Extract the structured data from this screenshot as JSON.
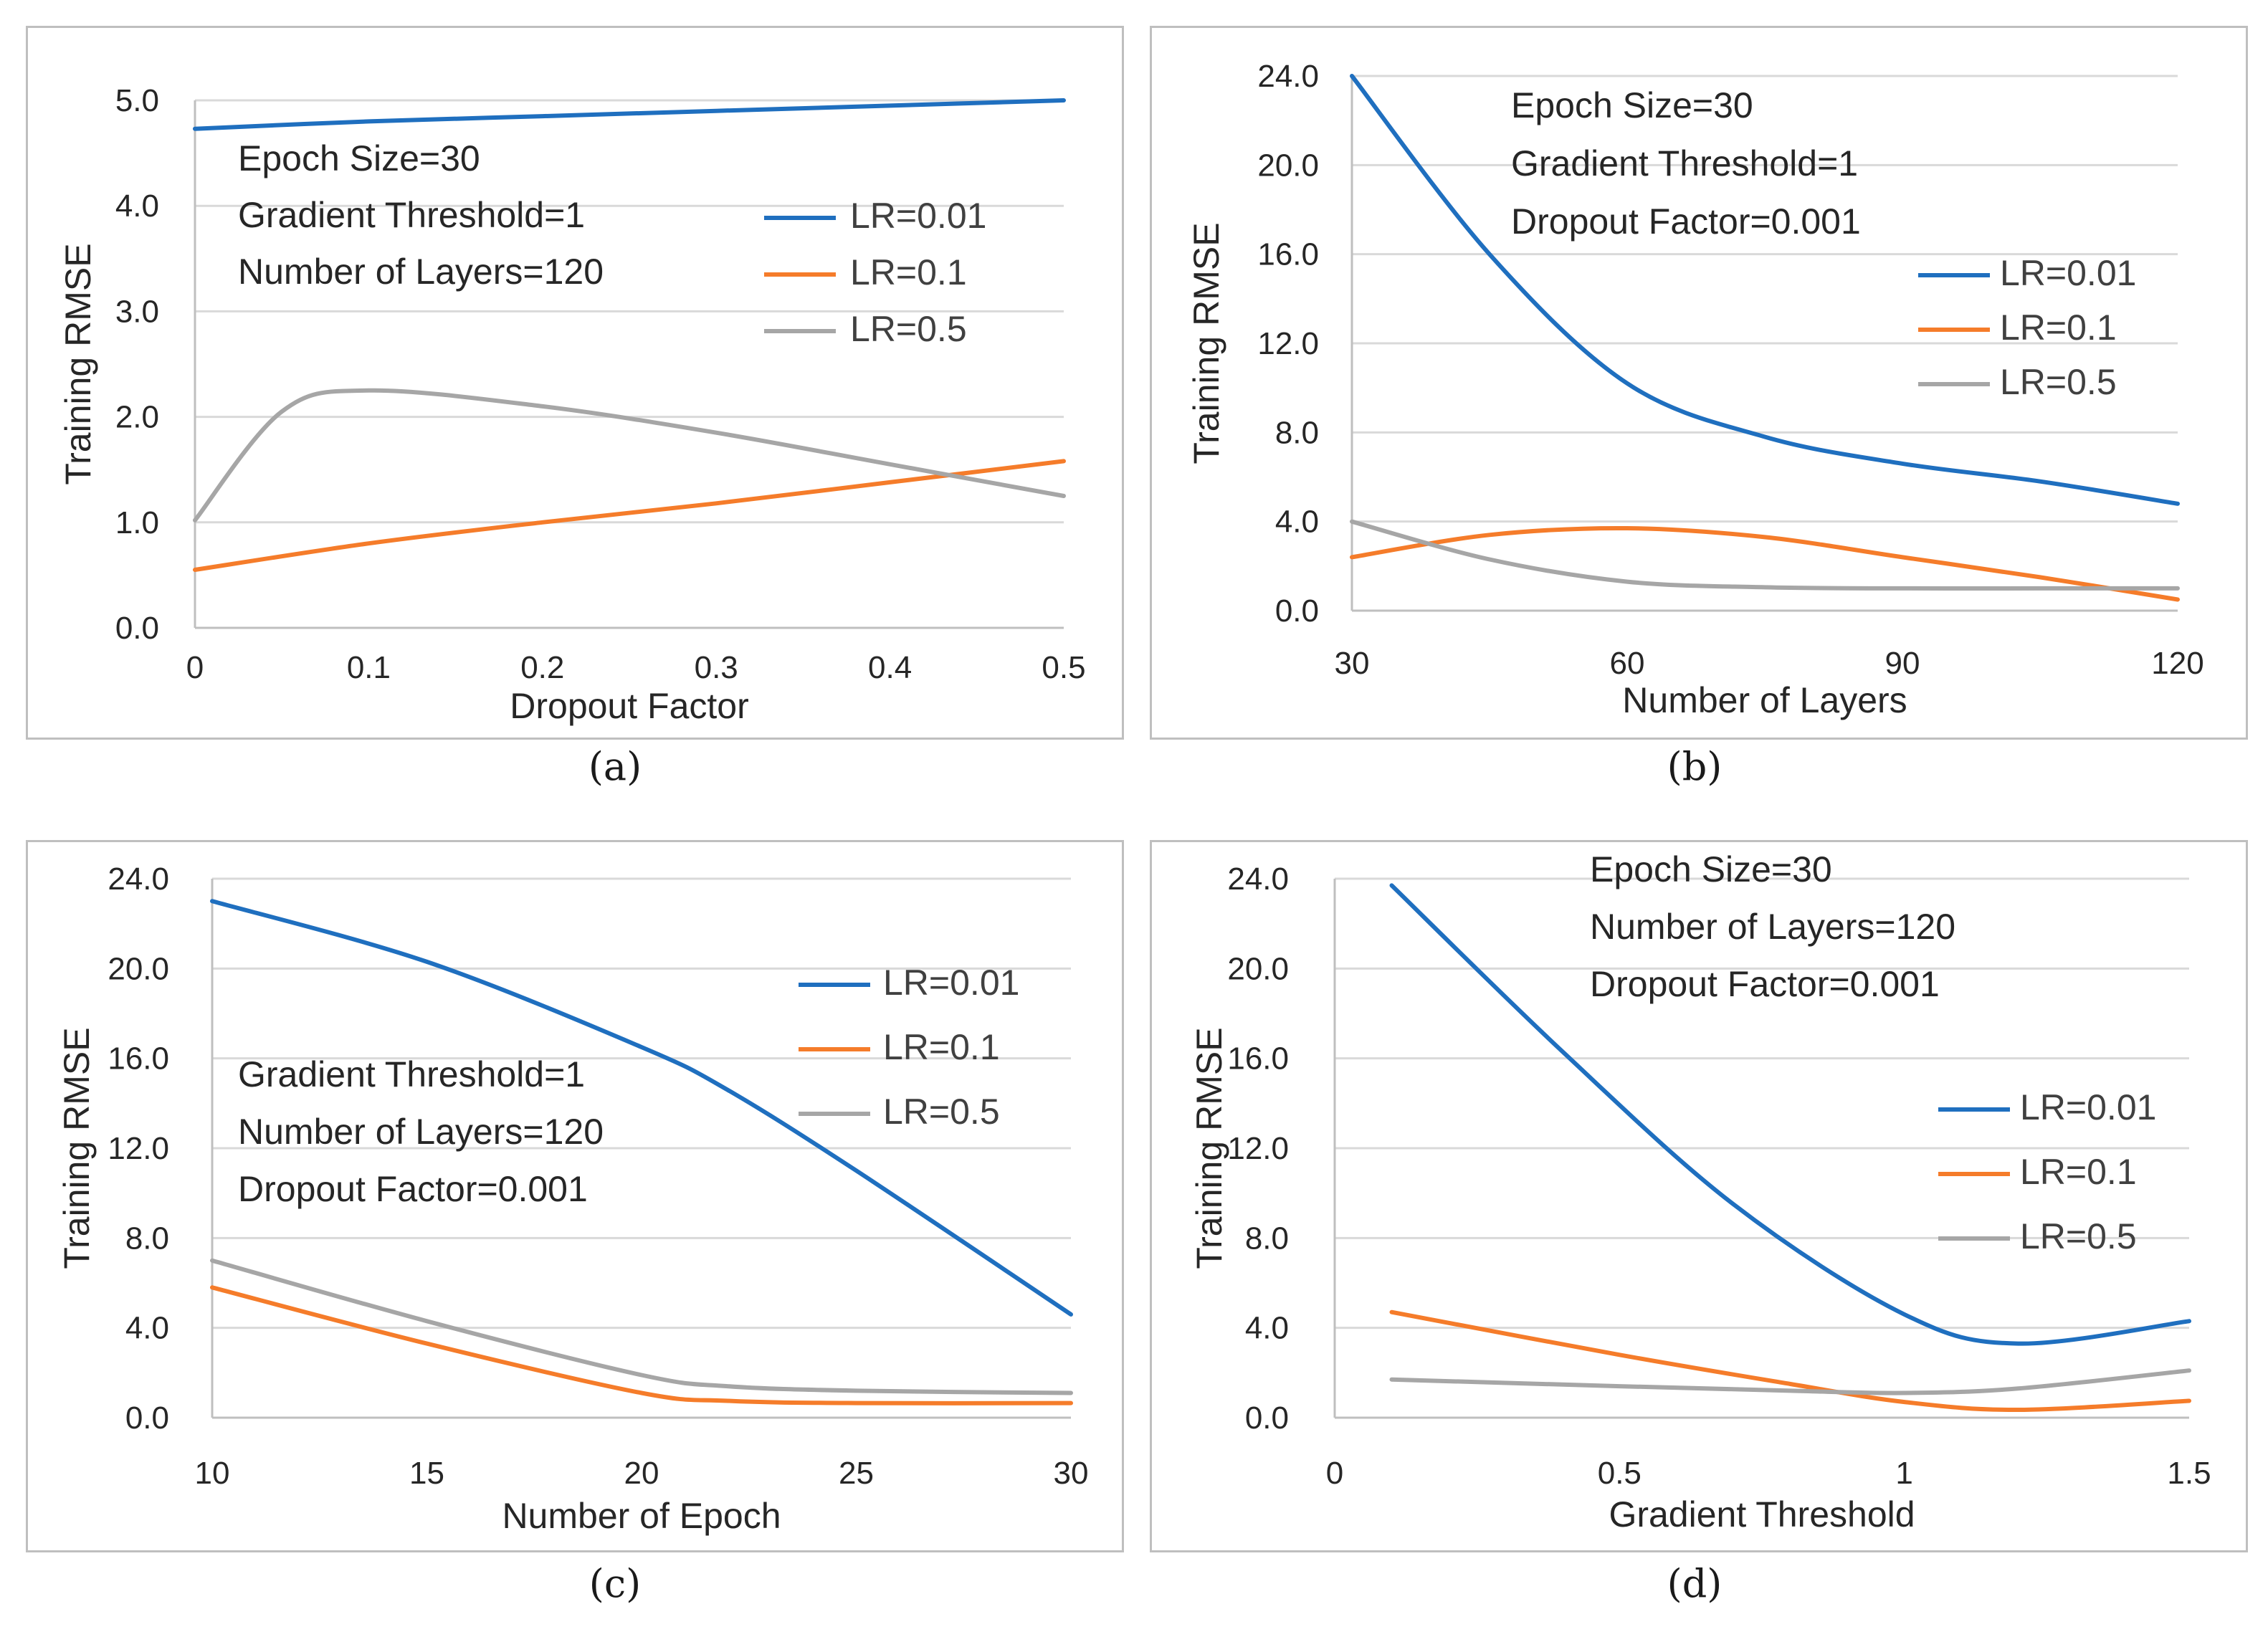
{
  "chart_data": [
    {
      "type": "line",
      "panel_label": "(a)",
      "xlabel": "Dropout  Factor",
      "ylabel": "Training RMSE",
      "xlim": [
        0,
        0.5
      ],
      "ylim": [
        0,
        5
      ],
      "xticks": [
        "0",
        "0.1",
        "0.2",
        "0.3",
        "0.4",
        "0.5"
      ],
      "yticks": [
        "0.0",
        "1.0",
        "2.0",
        "3.0",
        "4.0",
        "5.0"
      ],
      "annotations": [
        "Epoch Size=30",
        "Gradient Threshold=1",
        "Number of Layers=120"
      ],
      "legend_position": "right",
      "grid": true,
      "series": [
        {
          "name": "LR=0.01",
          "color": "#1f6fbf",
          "x": [
            0,
            0.1,
            0.2,
            0.3,
            0.4,
            0.5
          ],
          "y": [
            4.73,
            4.8,
            4.85,
            4.9,
            4.95,
            5.0
          ]
        },
        {
          "name": "LR=0.1",
          "color": "#f57c2a",
          "x": [
            0,
            0.1,
            0.2,
            0.3,
            0.4,
            0.5
          ],
          "y": [
            0.55,
            0.8,
            1.0,
            1.18,
            1.38,
            1.58
          ]
        },
        {
          "name": "LR=0.5",
          "color": "#a6a6a6",
          "x": [
            0,
            0.05,
            0.1,
            0.2,
            0.3,
            0.4,
            0.5
          ],
          "y": [
            1.02,
            2.05,
            2.25,
            2.1,
            1.85,
            1.55,
            1.25
          ]
        }
      ]
    },
    {
      "type": "line",
      "panel_label": "(b)",
      "xlabel": "Number of Layers",
      "ylabel": "Training RMSE",
      "xlim": [
        30,
        120
      ],
      "ylim": [
        0,
        24
      ],
      "xticks": [
        "30",
        "60",
        "90",
        "120"
      ],
      "yticks": [
        "0.0",
        "4.0",
        "8.0",
        "12.0",
        "16.0",
        "20.0",
        "24.0"
      ],
      "annotations": [
        "Epoch Size=30",
        "Gradient Threshold=1",
        "Dropout Factor=0.001"
      ],
      "legend_position": "right",
      "grid": true,
      "series": [
        {
          "name": "LR=0.01",
          "color": "#1f6fbf",
          "x": [
            30,
            45,
            60,
            75,
            90,
            105,
            120
          ],
          "y": [
            24.0,
            16.0,
            10.2,
            7.8,
            6.6,
            5.8,
            4.8
          ]
        },
        {
          "name": "LR=0.1",
          "color": "#f57c2a",
          "x": [
            30,
            45,
            60,
            75,
            90,
            105,
            120
          ],
          "y": [
            2.4,
            3.4,
            3.7,
            3.3,
            2.4,
            1.5,
            0.5
          ]
        },
        {
          "name": "LR=0.5",
          "color": "#a6a6a6",
          "x": [
            30,
            45,
            60,
            75,
            90,
            105,
            120
          ],
          "y": [
            4.0,
            2.3,
            1.3,
            1.05,
            1.0,
            1.0,
            1.0
          ]
        }
      ]
    },
    {
      "type": "line",
      "panel_label": "(c)",
      "xlabel": "Number of Epoch",
      "ylabel": "Training RMSE",
      "xlim": [
        10,
        30
      ],
      "ylim": [
        0,
        24
      ],
      "xticks": [
        "10",
        "15",
        "20",
        "25",
        "30"
      ],
      "yticks": [
        "0.0",
        "4.0",
        "8.0",
        "12.0",
        "16.0",
        "20.0",
        "24.0"
      ],
      "annotations": [
        "Gradient Threshold=1",
        "Number of Layers=120",
        "Dropout Factor=0.001"
      ],
      "legend_position": "right",
      "grid": true,
      "series": [
        {
          "name": "LR=0.01",
          "color": "#1f6fbf",
          "x": [
            10,
            15,
            20,
            22,
            25,
            30
          ],
          "y": [
            23.0,
            20.3,
            16.5,
            14.6,
            11.0,
            4.6
          ]
        },
        {
          "name": "LR=0.1",
          "color": "#f57c2a",
          "x": [
            10,
            15,
            20,
            22,
            25,
            30
          ],
          "y": [
            5.8,
            3.3,
            1.1,
            0.75,
            0.65,
            0.65
          ]
        },
        {
          "name": "LR=0.5",
          "color": "#a6a6a6",
          "x": [
            10,
            15,
            20,
            22,
            25,
            30
          ],
          "y": [
            7.0,
            4.3,
            1.9,
            1.4,
            1.2,
            1.1
          ]
        }
      ]
    },
    {
      "type": "line",
      "panel_label": "(d)",
      "xlabel": "Gradient Threshold",
      "ylabel": "Training RMSE",
      "xlim": [
        0,
        1.5
      ],
      "ylim": [
        0,
        24
      ],
      "xticks": [
        "0",
        "0.5",
        "1",
        "1.5"
      ],
      "yticks": [
        "0.0",
        "4.0",
        "8.0",
        "12.0",
        "16.0",
        "20.0",
        "24.0"
      ],
      "annotations": [
        "Epoch Size=30",
        "Number of Layers=120",
        "Dropout Factor=0.001"
      ],
      "legend_position": "right",
      "grid": true,
      "series": [
        {
          "name": "LR=0.01",
          "color": "#1f6fbf",
          "x": [
            0.1,
            0.4,
            0.7,
            1.0,
            1.2,
            1.5
          ],
          "y": [
            23.7,
            16.3,
            9.5,
            4.6,
            3.3,
            4.3
          ]
        },
        {
          "name": "LR=0.1",
          "color": "#f57c2a",
          "x": [
            0.1,
            0.5,
            0.8,
            1.0,
            1.2,
            1.5
          ],
          "y": [
            4.7,
            2.8,
            1.5,
            0.7,
            0.35,
            0.75
          ]
        },
        {
          "name": "LR=0.5",
          "color": "#a6a6a6",
          "x": [
            0.1,
            0.5,
            0.8,
            1.0,
            1.2,
            1.5
          ],
          "y": [
            1.7,
            1.4,
            1.2,
            1.1,
            1.3,
            2.1
          ]
        }
      ]
    }
  ]
}
